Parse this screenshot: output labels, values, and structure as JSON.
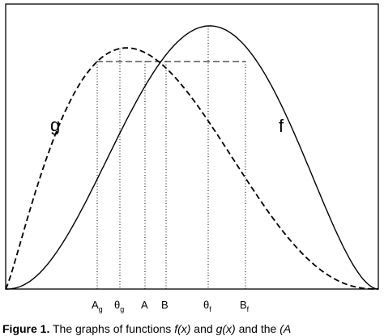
{
  "curves": {
    "g_label": "g",
    "f_label": "f"
  },
  "markers": [
    {
      "id": "a-g",
      "base": "A",
      "sub": "g"
    },
    {
      "id": "theta-g",
      "base": "θ",
      "sub": "g"
    },
    {
      "id": "a",
      "base": "A",
      "sub": ""
    },
    {
      "id": "b",
      "base": "B",
      "sub": ""
    },
    {
      "id": "theta-f",
      "base": "θ",
      "sub": "f"
    },
    {
      "id": "b-f",
      "base": "B",
      "sub": "f"
    }
  ],
  "caption": {
    "label": "Figure 1.",
    "text1": " The graphs of functions ",
    "f_expr": "f(x)",
    "text2": " and ",
    "g_expr": "g(x)",
    "text3": " and the ",
    "tail": "(A"
  }
}
